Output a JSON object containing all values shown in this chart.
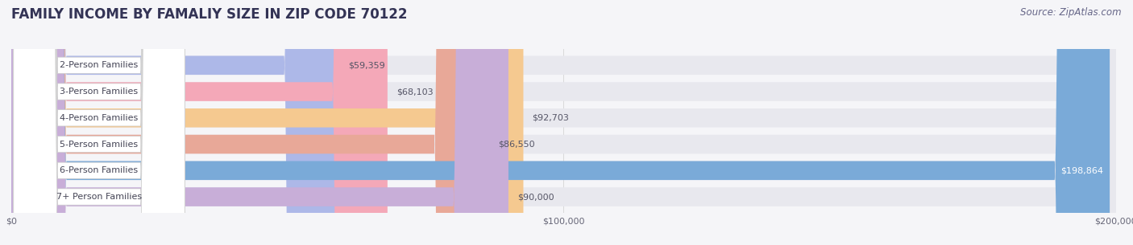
{
  "title": "FAMILY INCOME BY FAMALIY SIZE IN ZIP CODE 70122",
  "source": "Source: ZipAtlas.com",
  "categories": [
    "2-Person Families",
    "3-Person Families",
    "4-Person Families",
    "5-Person Families",
    "6-Person Families",
    "7+ Person Families"
  ],
  "values": [
    59359,
    68103,
    92703,
    86550,
    198864,
    90000
  ],
  "bar_colors": [
    "#adb8e8",
    "#f4a8b8",
    "#f5c990",
    "#e8a898",
    "#7aaad8",
    "#c8aed8"
  ],
  "bar_bg_color": "#e8e8ee",
  "label_bg_color": "#ffffff",
  "value_labels": [
    "$59,359",
    "$68,103",
    "$92,703",
    "$86,550",
    "$198,864",
    "$90,000"
  ],
  "xlim": [
    0,
    200000
  ],
  "xticks": [
    0,
    100000,
    200000
  ],
  "xtick_labels": [
    "$0",
    "$100,000",
    "$200,000"
  ],
  "title_fontsize": 12,
  "source_fontsize": 8.5,
  "bar_label_fontsize": 8,
  "value_fontsize": 8,
  "background_color": "#f5f5f8",
  "bar_height": 0.72,
  "title_color": "#333355",
  "source_color": "#666688"
}
